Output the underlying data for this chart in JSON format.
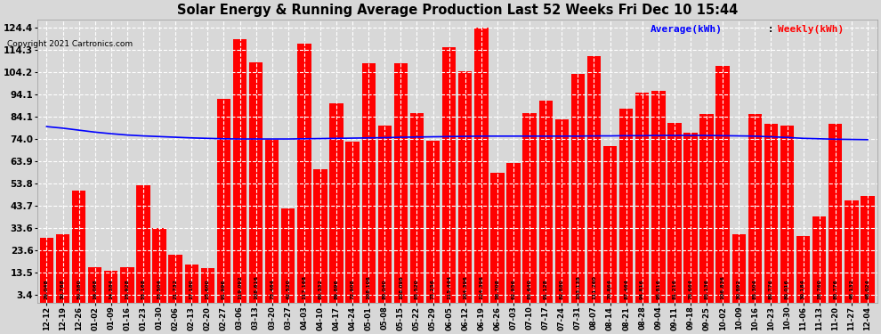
{
  "title": "Solar Energy & Running Average Production Last 52 Weeks Fri Dec 10 15:44",
  "copyright": "Copyright 2021 Cartronics.com",
  "legend_avg": "Average(kWh)",
  "legend_weekly": "Weekly(kWh)",
  "bar_color": "#FF0000",
  "avg_line_color": "#0000FF",
  "background_color": "#D8D8D8",
  "grid_color": "#FFFFFF",
  "yticks": [
    3.4,
    13.5,
    23.6,
    33.6,
    43.7,
    53.8,
    63.9,
    74.0,
    84.1,
    94.1,
    104.2,
    114.3,
    124.4
  ],
  "ylim": [
    0,
    128
  ],
  "categories": [
    "12-12",
    "12-19",
    "12-26",
    "01-02",
    "01-09",
    "01-16",
    "01-23",
    "01-30",
    "02-06",
    "02-13",
    "02-20",
    "02-27",
    "03-06",
    "03-13",
    "03-20",
    "03-27",
    "04-03",
    "04-10",
    "04-17",
    "04-24",
    "05-01",
    "05-08",
    "05-15",
    "05-22",
    "05-29",
    "06-05",
    "06-12",
    "06-19",
    "06-26",
    "07-03",
    "07-10",
    "07-17",
    "07-24",
    "07-31",
    "08-07",
    "08-14",
    "08-21",
    "08-28",
    "09-04",
    "09-11",
    "09-18",
    "09-25",
    "10-02",
    "10-09",
    "10-16",
    "10-23",
    "10-30",
    "11-06",
    "11-13",
    "11-20",
    "11-27",
    "12-04"
  ],
  "weekly_values": [
    29.048,
    30.768,
    50.38,
    16.068,
    14.384,
    15.928,
    53.168,
    33.504,
    21.732,
    17.18,
    15.6,
    91.996,
    119.092,
    108.616,
    73.464,
    42.52,
    117.168,
    60.332,
    89.896,
    72.908,
    108.108,
    80.04,
    108.096,
    85.52,
    73.256,
    115.444,
    104.396,
    124.396,
    58.708,
    62.956,
    85.64,
    91.128,
    82.88,
    103.138,
    111.26,
    70.864,
    87.464,
    94.816,
    95.816,
    81.216,
    76.664,
    85.136,
    106.836,
    30.892,
    85.304,
    80.776,
    80.016,
    30.184,
    38.76,
    80.776,
    46.132,
    48.024
  ],
  "avg_values": [
    79.5,
    78.8,
    77.9,
    77.0,
    76.3,
    75.7,
    75.3,
    75.0,
    74.7,
    74.4,
    74.2,
    74.0,
    73.9,
    73.9,
    73.9,
    73.9,
    74.0,
    74.1,
    74.2,
    74.3,
    74.4,
    74.5,
    74.7,
    74.8,
    74.9,
    75.0,
    75.1,
    75.2,
    75.2,
    75.2,
    75.2,
    75.2,
    75.2,
    75.2,
    75.3,
    75.3,
    75.4,
    75.4,
    75.5,
    75.5,
    75.5,
    75.5,
    75.4,
    75.3,
    75.2,
    74.9,
    74.6,
    74.2,
    74.0,
    73.8,
    73.7,
    73.6
  ],
  "label_values": [
    "29.048",
    "30.768",
    "50.380",
    "16.068",
    "14.384",
    "15.928",
    "53.168",
    "33.504",
    "21.732",
    "17.180",
    "15.600",
    "91.996",
    "119.092",
    "108.616",
    "73.464",
    "42.520",
    "117.168",
    "60.332",
    "89.896",
    "72.908",
    "108.108",
    "80.040",
    "108.096",
    "85.520",
    "73.256",
    "115.444",
    "104.396",
    "124.396",
    "58.708",
    "62.956",
    "85.640",
    "91.128",
    "82.880",
    "103.138",
    "111.260",
    "70.864",
    "87.464",
    "94.816",
    "95.816",
    "81.216",
    "76.664",
    "85.136",
    "106.836",
    "30.892",
    "85.304",
    "80.776",
    "80.016",
    "30.184",
    "38.760",
    "80.776",
    "46.132",
    "48.024"
  ]
}
